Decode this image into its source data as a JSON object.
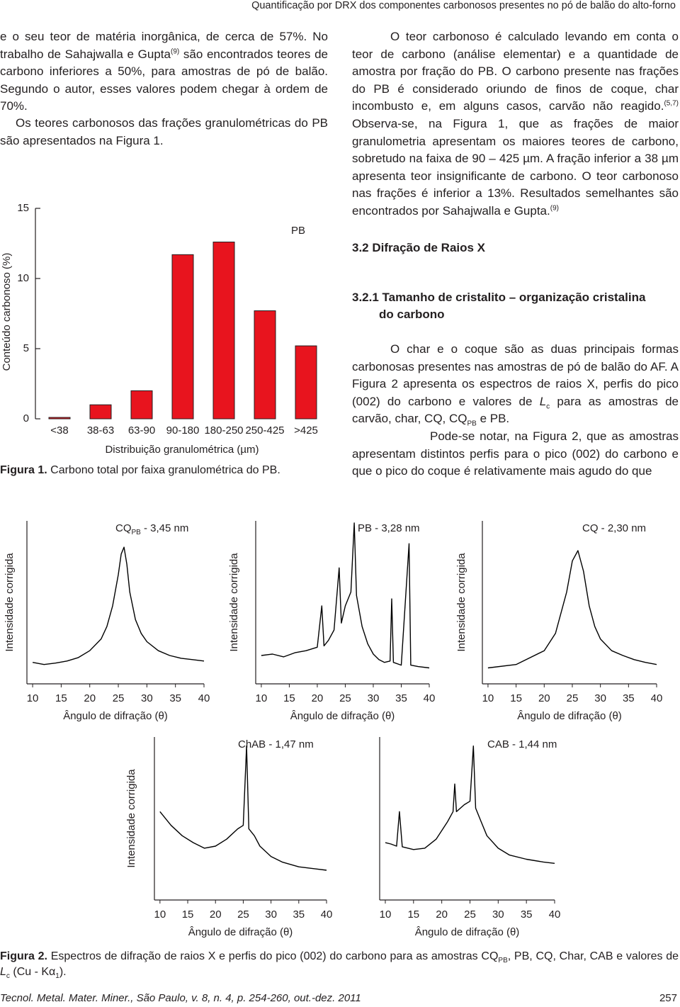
{
  "header": "Quantificação por DRX dos componentes carbonosos presentes no pó de balão do alto-forno",
  "left_column": {
    "paragraph_1": [
      "e o seu teor de matéria inorgânica, de cerca de 57%. No trabalho de Sahajwalla e Gupta",
      "(9)",
      " são encontrados teores de carbono inferiores a 50%, para amostras de pó de balão. Segundo o autor, esses valores podem chegar à ordem de 70%."
    ],
    "paragraph_2": "Os teores carbonosos das frações granulométricas do PB são apresentados na Figura 1."
  },
  "figure1_caption": [
    "Figura 1.",
    "Carbono total por faixa granulométrica do PB."
  ],
  "right_column": {
    "paragraph_1": [
      "O teor carbonoso é calculado levando em conta o teor de carbono (análise elementar) e a quantidade de amostra por fração do PB. O carbono presente nas frações do PB é considerado oriundo de finos de coque, char incombusto e, em alguns casos, carvão não reagido.",
      "(5,7)",
      " Observa-se, na Figura 1, que as frações de maior granulometria apresentam os maiores teores de carbono, sobretudo na faixa de 90 – 425 µm. A fração inferior a 38 µm apresenta teor insignificante de carbono. O teor carbonoso nas frações é inferior a 13%. Resultados semelhantes são encontrados por Sahajwalla e Gupta.",
      "(9)"
    ],
    "section_heading": "3.2 Difração de Raios X",
    "subsection_heading": [
      "3.2.1 Tamanho de cristalito – organização cristalina",
      "do carbono"
    ],
    "paragraph_2": [
      "O char e o coque são as duas principais formas carbonosas presentes nas amostras de pó de balão do AF. A Figura 2 apresenta os espectros de raios X, perfis do pico (002) do carbono e valores de ",
      "L",
      "c",
      " para as amostras de carvão, char, CQ, CQ",
      "PB",
      " e PB."
    ],
    "paragraph_3": "Pode-se notar, na Figura 2, que as amostras apresentam distintos perfis para o pico (002) do carbono e que o pico do coque é relativamente mais agudo do que"
  },
  "chart_data": [
    {
      "type": "bar",
      "categories": [
        "<38",
        "38-63",
        "63-90",
        "90-180",
        "180-250",
        "250-425",
        ">425"
      ],
      "values": [
        0.1,
        1.0,
        2.0,
        11.7,
        12.6,
        7.7,
        5.2
      ],
      "color": "#e8141e",
      "ylim": [
        0,
        15
      ],
      "yticks": [
        0,
        5,
        10,
        15
      ],
      "xlabel": "Distribuição granulométrica (µm)",
      "ylabel": "Conteúdo carbonoso (%)",
      "annotation": "PB"
    },
    {
      "type": "line",
      "title": [
        "CQ",
        "PB",
        " - 3,45 nm"
      ],
      "color": "#000000",
      "x": [
        10,
        12,
        14,
        16,
        18,
        20,
        22,
        23,
        24,
        25,
        25.5,
        26,
        26.5,
        27,
        28,
        29,
        30,
        32,
        34,
        36,
        38,
        40
      ],
      "values": [
        28,
        25,
        27,
        30,
        35,
        45,
        62,
        80,
        110,
        155,
        185,
        195,
        170,
        130,
        90,
        70,
        58,
        45,
        38,
        34,
        32,
        30
      ],
      "xlim": [
        9,
        40
      ],
      "xticks": [
        10,
        15,
        20,
        25,
        30,
        35,
        40
      ],
      "xlabel": "Ângulo de difração (θ)",
      "ylabel": "Intensidade corrigida"
    },
    {
      "type": "line",
      "title": "PB - 3,28 nm",
      "color": "#000000",
      "x": [
        10,
        12,
        14,
        16,
        18,
        20,
        20.8,
        21.2,
        22,
        23,
        23.9,
        24.3,
        25,
        26,
        26.6,
        27,
        28,
        29,
        30,
        31,
        32,
        33,
        33.3,
        33.6,
        35,
        36.4,
        36.7,
        38,
        40
      ],
      "values": [
        38,
        40,
        36,
        42,
        45,
        50,
        110,
        52,
        60,
        75,
        165,
        85,
        110,
        130,
        230,
        125,
        80,
        55,
        40,
        32,
        28,
        30,
        120,
        28,
        24,
        200,
        24,
        22,
        20
      ],
      "xlim": [
        9,
        40
      ],
      "xticks": [
        10,
        15,
        20,
        25,
        30,
        35,
        40
      ],
      "xlabel": "Ângulo de difração (θ)",
      "ylabel": "Intensidade corrigida"
    },
    {
      "type": "line",
      "title": "CQ - 2,30 nm",
      "color": "#000000",
      "x": [
        10,
        15,
        20,
        22,
        24,
        25,
        26,
        27,
        28,
        29,
        30,
        32,
        34,
        36,
        38,
        40
      ],
      "values": [
        20,
        25,
        45,
        70,
        130,
        175,
        190,
        160,
        110,
        80,
        62,
        45,
        38,
        32,
        28,
        25
      ],
      "xlim": [
        9,
        40
      ],
      "xticks": [
        10,
        15,
        20,
        25,
        30,
        35,
        40
      ],
      "xlabel": "Ângulo de difração (θ)",
      "ylabel": "Intensidade corrigida"
    },
    {
      "type": "line",
      "title": "ChAB - 1,47 nm",
      "color": "#000000",
      "x": [
        10,
        12,
        14,
        16,
        18,
        20,
        22,
        24,
        25,
        25.6,
        26,
        27,
        28,
        30,
        32,
        35,
        38,
        40
      ],
      "values": [
        125,
        105,
        90,
        80,
        72,
        75,
        85,
        100,
        105,
        220,
        100,
        90,
        75,
        60,
        52,
        45,
        42,
        40
      ],
      "xlim": [
        9,
        40
      ],
      "xticks": [
        10,
        15,
        20,
        25,
        30,
        35,
        40
      ],
      "xlabel": "Ângulo de difração (θ)",
      "ylabel": "Intensidade corrigida"
    },
    {
      "type": "line",
      "title": "CAB - 1,44 nm",
      "color": "#000000",
      "x": [
        10,
        11,
        12,
        12.5,
        13,
        15,
        17,
        19,
        21,
        22,
        22.3,
        22.6,
        24,
        25,
        25.6,
        26,
        27,
        28,
        30,
        32,
        35,
        38,
        40
      ],
      "values": [
        80,
        78,
        75,
        125,
        74,
        70,
        72,
        85,
        110,
        125,
        165,
        125,
        135,
        140,
        220,
        130,
        110,
        90,
        72,
        62,
        56,
        52,
        50
      ],
      "xlim": [
        9,
        40
      ],
      "xticks": [
        10,
        15,
        20,
        25,
        30,
        35,
        40
      ],
      "xlabel": "Ângulo de difração (θ)"
    }
  ],
  "figure2_caption": [
    "Figura 2.",
    "Espectros de difração de raios X e perfis do pico (002) do carbono para as amostras CQ",
    "PB",
    ", PB, CQ, Char, CAB e valores de ",
    "L",
    "c",
    "(Cu - K",
    "α",
    "1",
    ")."
  ],
  "footer": {
    "citation": "Tecnol. Metal. Mater. Miner., São Paulo, v. 8, n. 4, p. 254-260, out.-dez. 2011",
    "page_number": "257"
  }
}
